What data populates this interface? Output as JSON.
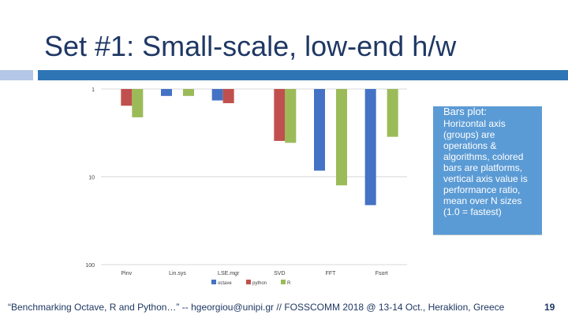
{
  "slide": {
    "title": "Set #1: Small-scale, low-end h/w",
    "footer": "“Benchmarking Octave, R and Python…” -- hgeorgiou@unipi.gr  //  FOSSCOMM 2018 @ 13-14 Oct., Heraklion, Greece",
    "page_number": "19",
    "note": {
      "title": "Bars plot:",
      "body": "Horizontal axis (groups) are operations & algorithms, colored bars are platforms, vertical axis value is performance ratio, mean over N sizes (1.0 = fastest)"
    }
  },
  "chart_data": {
    "type": "bar",
    "categories": [
      "Pinv",
      "Lin.sys",
      "LSE.mgr",
      "SVD",
      "FFT",
      "Fsort"
    ],
    "series": [
      {
        "name": "octave",
        "color": "#4472c4",
        "values": [
          1.0,
          1.2,
          1.35,
          1.0,
          8.5,
          21.0
        ]
      },
      {
        "name": "python",
        "color": "#c0504d",
        "values": [
          1.55,
          1.0,
          1.45,
          3.9,
          1.0,
          1.0
        ]
      },
      {
        "name": "R",
        "color": "#9bbb59",
        "values": [
          2.1,
          1.2,
          1.0,
          4.1,
          12.5,
          3.5
        ]
      }
    ],
    "yscale": "log",
    "yaxis_inverted": true,
    "ylim": [
      1,
      100
    ],
    "yticks": [
      "1",
      "10",
      "100"
    ],
    "grid": true,
    "legend": "bottom"
  }
}
